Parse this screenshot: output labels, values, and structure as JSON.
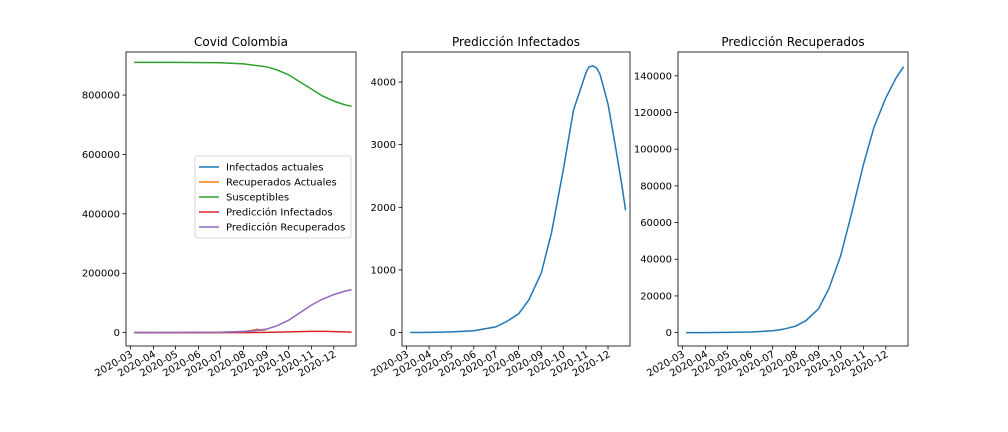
{
  "chart_data": [
    {
      "type": "line",
      "title": "Covid Colombia",
      "xlabel": "",
      "ylabel": "",
      "x_ticks": [
        "2020-03",
        "2020-04",
        "2020-05",
        "2020-06",
        "2020-07",
        "2020-08",
        "2020-09",
        "2020-10",
        "2020-11",
        "2020-12"
      ],
      "y_ticks": [
        0,
        200000,
        400000,
        600000,
        800000
      ],
      "xlim": [
        "2020-02-24",
        "2020-12-31"
      ],
      "ylim": [
        -45000,
        945000
      ],
      "legend": "center-right",
      "series": [
        {
          "name": "Infectados actuales",
          "color": "#1f77b4",
          "x": [
            "2020-03-06",
            "2020-05-01",
            "2020-07-01",
            "2020-08-01",
            "2020-08-15",
            "2020-08-25",
            "2020-09-01"
          ],
          "y": [
            0,
            200,
            1500,
            4000,
            6500,
            9000,
            10000
          ]
        },
        {
          "name": "Recuperados Actuales",
          "color": "#ff7f0e",
          "x": [
            "2020-03-06",
            "2020-05-01",
            "2020-07-01",
            "2020-08-01",
            "2020-08-10",
            "2020-08-20",
            "2020-08-25",
            "2020-09-01"
          ],
          "y": [
            0,
            100,
            1000,
            3000,
            7000,
            12000,
            8000,
            10000
          ]
        },
        {
          "name": "Susceptibles",
          "color": "#2ca02c",
          "x": [
            "2020-03-06",
            "2020-05-01",
            "2020-07-01",
            "2020-08-01",
            "2020-09-01",
            "2020-09-15",
            "2020-10-01",
            "2020-10-15",
            "2020-11-01",
            "2020-11-15",
            "2020-12-01",
            "2020-12-15",
            "2020-12-25"
          ],
          "y": [
            910000,
            910000,
            909000,
            905000,
            895000,
            885000,
            868000,
            846000,
            820000,
            798000,
            780000,
            768000,
            762000
          ]
        },
        {
          "name": "Predicción Infectados",
          "color": "#d62728",
          "x": [
            "2020-03-06",
            "2020-07-01",
            "2020-08-01",
            "2020-09-01",
            "2020-10-01",
            "2020-10-15",
            "2020-11-01",
            "2020-11-10",
            "2020-11-20",
            "2020-12-01",
            "2020-12-15",
            "2020-12-25"
          ],
          "y": [
            0,
            80,
            280,
            950,
            2600,
            3600,
            4200,
            4260,
            4100,
            3500,
            2600,
            1950
          ]
        },
        {
          "name": "Predicción Recuperados",
          "color": "#9467bd",
          "x": [
            "2020-03-06",
            "2020-07-01",
            "2020-08-01",
            "2020-09-01",
            "2020-09-15",
            "2020-10-01",
            "2020-10-15",
            "2020-11-01",
            "2020-11-15",
            "2020-12-01",
            "2020-12-15",
            "2020-12-25"
          ],
          "y": [
            0,
            900,
            3500,
            12000,
            23000,
            42000,
            65000,
            93000,
            112000,
            128000,
            139000,
            145000
          ]
        }
      ]
    },
    {
      "type": "line",
      "title": "Predicción Infectados",
      "xlabel": "",
      "ylabel": "",
      "x_ticks": [
        "2020-03",
        "2020-04",
        "2020-05",
        "2020-06",
        "2020-07",
        "2020-08",
        "2020-09",
        "2020-10",
        "2020-11",
        "2020-12"
      ],
      "y_ticks": [
        0,
        1000,
        2000,
        3000,
        4000
      ],
      "xlim": [
        "2020-02-24",
        "2020-12-31"
      ],
      "ylim": [
        -215,
        4480
      ],
      "series": [
        {
          "color": "#1f77b4",
          "x": [
            "2020-03-06",
            "2020-04-01",
            "2020-05-01",
            "2020-06-01",
            "2020-07-01",
            "2020-07-15",
            "2020-08-01",
            "2020-08-15",
            "2020-09-01",
            "2020-09-15",
            "2020-10-01",
            "2020-10-15",
            "2020-11-01",
            "2020-11-05",
            "2020-11-10",
            "2020-11-15",
            "2020-11-20",
            "2020-12-01",
            "2020-12-10",
            "2020-12-20",
            "2020-12-25"
          ],
          "y": [
            0,
            2,
            10,
            30,
            90,
            170,
            300,
            520,
            950,
            1600,
            2600,
            3550,
            4150,
            4240,
            4260,
            4230,
            4130,
            3650,
            3050,
            2350,
            1950
          ]
        }
      ]
    },
    {
      "type": "line",
      "title": "Predicción Recuperados",
      "xlabel": "",
      "ylabel": "",
      "x_ticks": [
        "2020-03",
        "2020-04",
        "2020-05",
        "2020-06",
        "2020-07",
        "2020-08",
        "2020-09",
        "2020-10",
        "2020-11",
        "2020-12"
      ],
      "y_ticks": [
        0,
        20000,
        40000,
        60000,
        80000,
        100000,
        120000,
        140000
      ],
      "xlim": [
        "2020-02-24",
        "2020-12-31"
      ],
      "ylim": [
        -7300,
        153000
      ],
      "series": [
        {
          "color": "#1f77b4",
          "x": [
            "2020-03-06",
            "2020-04-01",
            "2020-05-01",
            "2020-06-01",
            "2020-07-01",
            "2020-07-15",
            "2020-08-01",
            "2020-08-15",
            "2020-09-01",
            "2020-09-15",
            "2020-10-01",
            "2020-10-15",
            "2020-11-01",
            "2020-11-15",
            "2020-12-01",
            "2020-12-15",
            "2020-12-25"
          ],
          "y": [
            0,
            20,
            100,
            350,
            1000,
            1800,
            3500,
            6500,
            13000,
            24000,
            42000,
            64000,
            92000,
            112000,
            128000,
            139000,
            145000
          ]
        }
      ]
    }
  ]
}
